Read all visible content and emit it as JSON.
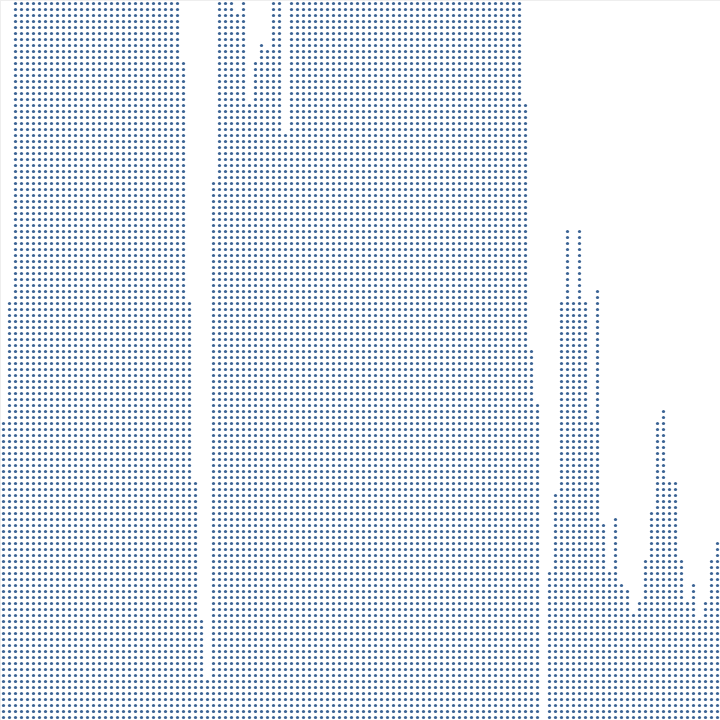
{
  "chart_data": {
    "type": "dot_histogram",
    "x": [
      0,
      1,
      2,
      3,
      4,
      5,
      6,
      7,
      8,
      9,
      10,
      11,
      12,
      13,
      14,
      15,
      16,
      17,
      18,
      19,
      20,
      21,
      22,
      23,
      24,
      25,
      26,
      27,
      28,
      29,
      30,
      31,
      32,
      33,
      34,
      35,
      36,
      37,
      38,
      39,
      40,
      41,
      42,
      43,
      44,
      45,
      46,
      47,
      48,
      49,
      50,
      51,
      52,
      53,
      54,
      55,
      56,
      57,
      58,
      59,
      60,
      61,
      62,
      63,
      64,
      65,
      66,
      67,
      68,
      69,
      70,
      71,
      72,
      73,
      74,
      75,
      76,
      77,
      78,
      79,
      80,
      81,
      82,
      83,
      84,
      85,
      86,
      87,
      88,
      89,
      90,
      91,
      92,
      93,
      94,
      95,
      96,
      97,
      98,
      99,
      100,
      101,
      102,
      103,
      104,
      105,
      106,
      107,
      108,
      109,
      110,
      111,
      112,
      113,
      114,
      115,
      116,
      117,
      118,
      119
    ],
    "values": [
      50,
      70,
      120,
      120,
      120,
      120,
      120,
      120,
      120,
      120,
      120,
      120,
      120,
      120,
      120,
      120,
      120,
      120,
      120,
      120,
      120,
      120,
      120,
      120,
      120,
      120,
      120,
      120,
      120,
      120,
      110,
      70,
      40,
      17,
      7,
      90,
      120,
      120,
      120,
      118,
      120,
      103,
      110,
      113,
      112,
      120,
      120,
      98,
      120,
      120,
      120,
      120,
      120,
      120,
      120,
      120,
      120,
      120,
      120,
      120,
      120,
      120,
      120,
      120,
      120,
      120,
      120,
      120,
      120,
      120,
      120,
      120,
      120,
      120,
      120,
      120,
      120,
      120,
      120,
      120,
      120,
      120,
      120,
      120,
      120,
      120,
      120,
      103,
      62,
      53,
      0,
      25,
      38,
      70,
      82,
      70,
      82,
      70,
      50,
      72,
      33,
      25,
      34,
      23,
      22,
      18,
      20,
      27,
      35,
      50,
      52,
      40,
      40,
      27,
      20,
      23,
      17,
      20,
      27,
      30
    ],
    "xlim": [
      -0.5,
      119.5
    ],
    "ylim": [
      0,
      120
    ],
    "color": "#3b6394",
    "tick_labels": false,
    "grid": false
  }
}
